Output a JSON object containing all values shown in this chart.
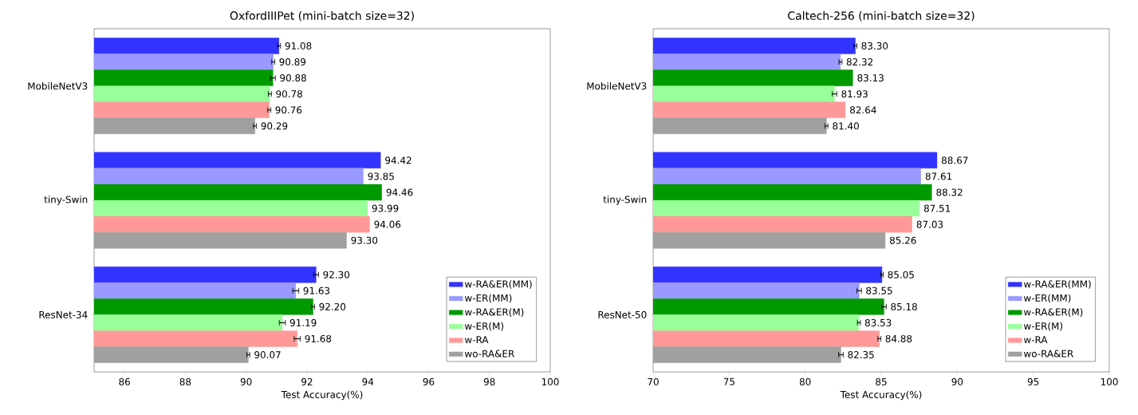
{
  "chart_data": [
    {
      "type": "bar",
      "orientation": "horizontal",
      "title": "OxfordIIIPet (mini-batch size=32)",
      "xlabel": "Test Accuracy(%)",
      "categories": [
        "MobileNetV3",
        "tiny-Swin",
        "ResNet-34"
      ],
      "xlim": [
        85,
        100
      ],
      "xticks": [
        86,
        88,
        90,
        92,
        94,
        96,
        98,
        100
      ],
      "legend": "bottom right",
      "series": [
        {
          "name": "w-RA&ER(MM)",
          "color": "#3333ff",
          "values": [
            91.08,
            94.42,
            92.3
          ],
          "errors": [
            0.05,
            null,
            0.08
          ],
          "value_labels": [
            "91.08",
            "94.42",
            "92.30"
          ]
        },
        {
          "name": "w-ER(MM)",
          "color": "#9999ff",
          "values": [
            90.89,
            93.85,
            91.63
          ],
          "errors": [
            0.05,
            null,
            0.1
          ],
          "value_labels": [
            "90.89",
            "93.85",
            "91.63"
          ]
        },
        {
          "name": "w-RA&ER(M)",
          "color": "#009900",
          "values": [
            90.88,
            94.46,
            92.2
          ],
          "errors": [
            0.08,
            null,
            0.05
          ],
          "value_labels": [
            "90.88",
            "94.46",
            "92.20"
          ]
        },
        {
          "name": "w-ER(M)",
          "color": "#99ff99",
          "values": [
            90.78,
            93.99,
            91.19
          ],
          "errors": [
            0.05,
            null,
            0.1
          ],
          "value_labels": [
            "90.78",
            "93.99",
            "91.19"
          ]
        },
        {
          "name": "w-RA",
          "color": "#ff9999",
          "values": [
            90.76,
            94.06,
            91.68
          ],
          "errors": [
            0.05,
            null,
            0.1
          ],
          "value_labels": [
            "90.76",
            "94.06",
            "91.68"
          ]
        },
        {
          "name": "wo-RA&ER",
          "color": "#a0a0a0",
          "values": [
            90.29,
            93.3,
            90.07
          ],
          "errors": [
            0.05,
            null,
            0.05
          ],
          "value_labels": [
            "90.29",
            "93.30",
            "90.07"
          ]
        }
      ]
    },
    {
      "type": "bar",
      "orientation": "horizontal",
      "title": "Caltech-256 (mini-batch size=32)",
      "xlabel": "Test Accuracy(%)",
      "categories": [
        "MobileNetV3",
        "tiny-Swin",
        "ResNet-50"
      ],
      "xlim": [
        70,
        100
      ],
      "xticks": [
        70,
        75,
        80,
        85,
        90,
        95,
        100
      ],
      "legend": "bottom right",
      "series": [
        {
          "name": "w-RA&ER(MM)",
          "color": "#3333ff",
          "values": [
            83.3,
            88.67,
            85.05
          ],
          "errors": [
            0.1,
            null,
            0.08
          ],
          "value_labels": [
            "83.30",
            "88.67",
            "85.05"
          ]
        },
        {
          "name": "w-ER(MM)",
          "color": "#9999ff",
          "values": [
            82.32,
            87.61,
            83.55
          ],
          "errors": [
            0.1,
            null,
            0.15
          ],
          "value_labels": [
            "82.32",
            "87.61",
            "83.55"
          ]
        },
        {
          "name": "w-RA&ER(M)",
          "color": "#009900",
          "values": [
            83.13,
            88.32,
            85.18
          ],
          "errors": [
            null,
            null,
            0.15
          ],
          "value_labels": [
            "83.13",
            "88.32",
            "85.18"
          ]
        },
        {
          "name": "w-ER(M)",
          "color": "#99ff99",
          "values": [
            81.93,
            87.51,
            83.53
          ],
          "errors": [
            0.15,
            null,
            0.1
          ],
          "value_labels": [
            "81.93",
            "87.51",
            "83.53"
          ]
        },
        {
          "name": "w-RA",
          "color": "#ff9999",
          "values": [
            82.64,
            87.03,
            84.88
          ],
          "errors": [
            null,
            null,
            0.1
          ],
          "value_labels": [
            "82.64",
            "87.03",
            "84.88"
          ]
        },
        {
          "name": "wo-RA&ER",
          "color": "#a0a0a0",
          "values": [
            81.4,
            85.26,
            82.35
          ],
          "errors": [
            0.1,
            null,
            0.15
          ],
          "value_labels": [
            "81.40",
            "85.26",
            "82.35"
          ]
        }
      ]
    }
  ]
}
